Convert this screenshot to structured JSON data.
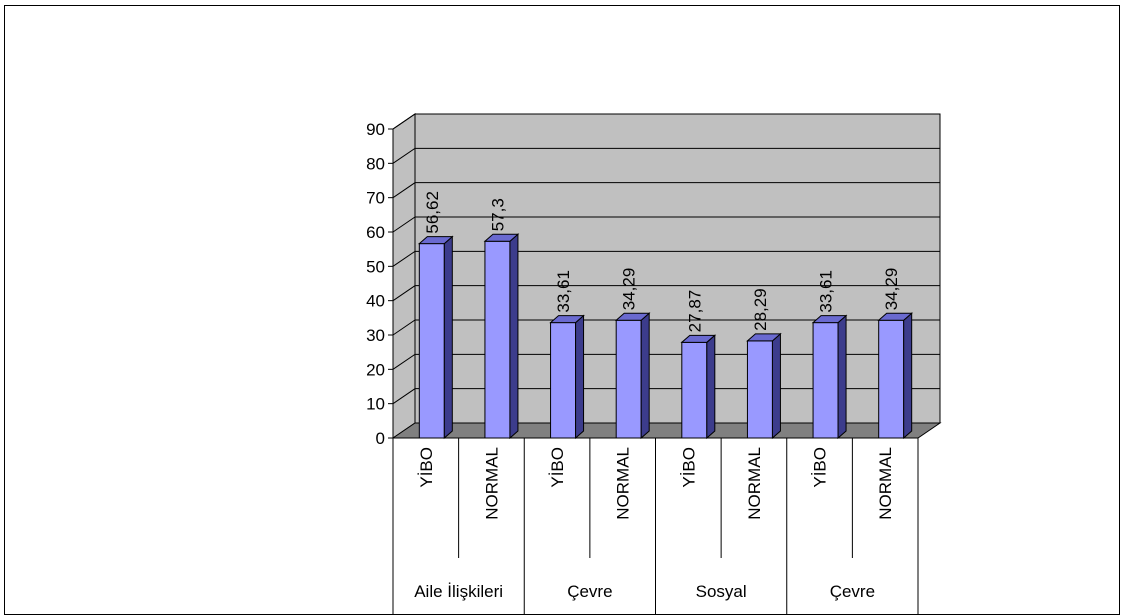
{
  "chart_data": {
    "type": "bar",
    "style": "3d-column",
    "groups": [
      {
        "label": "Aile İlişkileri",
        "categories": [
          "YİBO",
          "NORMAL"
        ]
      },
      {
        "label": "Çevre",
        "categories": [
          "YİBO",
          "NORMAL"
        ]
      },
      {
        "label": "Sosyal",
        "categories": [
          "YİBO",
          "NORMAL"
        ]
      },
      {
        "label": "Çevre",
        "categories": [
          "YİBO",
          "NORMAL"
        ]
      }
    ],
    "values": [
      56.62,
      57.3,
      33.61,
      34.29,
      27.87,
      28.29,
      33.61,
      34.29
    ],
    "data_labels": [
      "56,62",
      "57,3",
      "33,61",
      "34,29",
      "27,87",
      "28,29",
      "33,61",
      "34,29"
    ],
    "yticks": [
      0,
      10,
      20,
      30,
      40,
      50,
      60,
      70,
      80,
      90
    ],
    "ylim": [
      0,
      90
    ],
    "grid": true,
    "legend": "none",
    "title": "",
    "xlabel": "",
    "ylabel": "",
    "colors": {
      "bar_front": "#9999ff",
      "bar_side": "#3c3c8c",
      "bar_top": "#6a6ad0",
      "wall": "#c0c0c0",
      "floor": "#808080"
    }
  }
}
